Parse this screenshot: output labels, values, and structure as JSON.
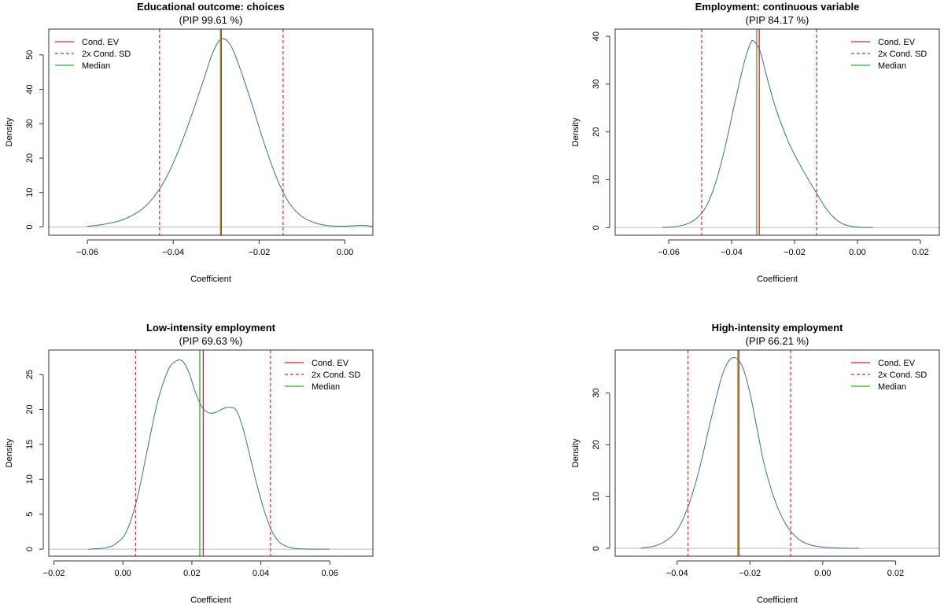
{
  "chart_data": [
    {
      "type": "line",
      "title": "Educational outcome: choices",
      "subtitle": "(PIP 99.61 %)",
      "xlabel": "Coefficient",
      "ylabel": "Density",
      "xlim": [
        -0.069,
        0.0065
      ],
      "ylim": [
        -2.4,
        57.5
      ],
      "xticks": [
        -0.06,
        -0.04,
        -0.02,
        0.0
      ],
      "xtick_labels": [
        "−0.06",
        "−0.04",
        "−0.02",
        "0.00"
      ],
      "yticks": [
        0,
        10,
        20,
        30,
        40,
        50
      ],
      "ytick_labels": [
        "0",
        "10",
        "20",
        "30",
        "40",
        "50"
      ],
      "legend": {
        "placement": "top-left",
        "entries": [
          "Cond. EV",
          "2x Cond. SD",
          "Median"
        ]
      },
      "cond_ev": -0.0288,
      "median": -0.029,
      "sd_lines": [
        -0.0432,
        -0.0144
      ],
      "series": [
        {
          "name": "density",
          "x": [
            -0.06,
            -0.056,
            -0.052,
            -0.048,
            -0.045,
            -0.042,
            -0.039,
            -0.036,
            -0.033,
            -0.031,
            -0.029,
            -0.027,
            -0.025,
            -0.022,
            -0.019,
            -0.016,
            -0.013,
            -0.01,
            -0.007,
            -0.004,
            0.0,
            0.004,
            0.0065
          ],
          "y": [
            0.2,
            0.8,
            2.0,
            4.5,
            8.0,
            13.5,
            21.5,
            31.5,
            42.5,
            50.0,
            54.5,
            53.5,
            48.0,
            37.0,
            25.0,
            14.5,
            7.0,
            3.0,
            1.2,
            0.4,
            0.2,
            0.5,
            0.1
          ]
        }
      ]
    },
    {
      "type": "line",
      "title": "Employment: continuous variable",
      "subtitle": "(PIP 84.17 %)",
      "xlabel": "Coefficient",
      "ylabel": "Density",
      "xlim": [
        -0.077,
        0.026
      ],
      "ylim": [
        -1.6,
        41.5
      ],
      "xticks": [
        -0.06,
        -0.04,
        -0.02,
        0.0,
        0.02
      ],
      "xtick_labels": [
        "−0.06",
        "−0.04",
        "−0.02",
        "0.00",
        "0.02"
      ],
      "yticks": [
        0,
        10,
        20,
        30,
        40
      ],
      "ytick_labels": [
        "0",
        "10",
        "20",
        "30",
        "40"
      ],
      "legend": {
        "placement": "top-right",
        "entries": [
          "Cond. EV",
          "2x Cond. SD",
          "Median"
        ]
      },
      "cond_ev": -0.0312,
      "median": -0.032,
      "sd_lines": [
        -0.0495,
        -0.013
      ],
      "series": [
        {
          "name": "density",
          "x": [
            -0.062,
            -0.058,
            -0.054,
            -0.051,
            -0.048,
            -0.045,
            -0.042,
            -0.039,
            -0.036,
            -0.034,
            -0.033,
            -0.031,
            -0.029,
            -0.026,
            -0.022,
            -0.019,
            -0.016,
            -0.013,
            -0.01,
            -0.007,
            -0.004,
            0.0,
            0.005
          ],
          "y": [
            0.05,
            0.2,
            0.8,
            2.0,
            4.5,
            9.5,
            17.0,
            26.0,
            34.5,
            38.5,
            39.0,
            37.0,
            32.0,
            25.0,
            18.0,
            14.0,
            10.5,
            7.2,
            4.0,
            1.8,
            0.6,
            0.1,
            0.02
          ]
        }
      ]
    },
    {
      "type": "line",
      "title": "Low-intensity employment",
      "subtitle": "(PIP 69.63 %)",
      "xlabel": "Coefficient",
      "ylabel": "Density",
      "xlim": [
        -0.0215,
        0.0725
      ],
      "ylim": [
        -1.0,
        28.5
      ],
      "xticks": [
        -0.02,
        0.0,
        0.02,
        0.04,
        0.06
      ],
      "xtick_labels": [
        "−0.02",
        "0.00",
        "0.02",
        "0.04",
        "0.06"
      ],
      "yticks": [
        0,
        5,
        10,
        15,
        20,
        25
      ],
      "ytick_labels": [
        "0",
        "5",
        "10",
        "15",
        "20",
        "25"
      ],
      "legend": {
        "placement": "top-right",
        "entries": [
          "Cond. EV",
          "2x Cond. SD",
          "Median"
        ]
      },
      "cond_ev": 0.0233,
      "median": 0.0223,
      "sd_lines": [
        0.0037,
        0.0428
      ],
      "series": [
        {
          "name": "density",
          "x": [
            -0.01,
            -0.005,
            -0.002,
            0.001,
            0.004,
            0.007,
            0.01,
            0.013,
            0.015,
            0.017,
            0.019,
            0.021,
            0.023,
            0.025,
            0.027,
            0.029,
            0.031,
            0.033,
            0.035,
            0.037,
            0.039,
            0.041,
            0.043,
            0.045,
            0.047,
            0.05,
            0.054,
            0.06
          ],
          "y": [
            0.0,
            0.2,
            0.8,
            2.5,
            7.0,
            14.0,
            21.0,
            25.5,
            26.8,
            27.0,
            25.5,
            22.5,
            20.3,
            19.5,
            19.6,
            20.1,
            20.3,
            19.8,
            17.0,
            13.0,
            9.0,
            5.5,
            2.8,
            1.2,
            0.5,
            0.1,
            0.02,
            0.0
          ]
        }
      ]
    },
    {
      "type": "line",
      "title": "High-intensity employment",
      "subtitle": "(PIP 66.21 %)",
      "xlabel": "Coefficient",
      "ylabel": "Density",
      "xlim": [
        -0.057,
        0.032
      ],
      "ylim": [
        -1.5,
        38.3
      ],
      "xticks": [
        -0.04,
        -0.02,
        0.0,
        0.02
      ],
      "xtick_labels": [
        "−0.04",
        "−0.02",
        "0.00",
        "0.02"
      ],
      "yticks": [
        0,
        10,
        20,
        30
      ],
      "ytick_labels": [
        "0",
        "10",
        "20",
        "30"
      ],
      "legend": {
        "placement": "top-right",
        "entries": [
          "Cond. EV",
          "2x Cond. SD",
          "Median"
        ]
      },
      "cond_ev": -0.023,
      "median": -0.0233,
      "sd_lines": [
        -0.037,
        -0.0088
      ],
      "series": [
        {
          "name": "density",
          "x": [
            -0.05,
            -0.046,
            -0.043,
            -0.04,
            -0.037,
            -0.034,
            -0.031,
            -0.028,
            -0.026,
            -0.024,
            -0.022,
            -0.02,
            -0.018,
            -0.016,
            -0.013,
            -0.01,
            -0.007,
            -0.004,
            0.0,
            0.005,
            0.01
          ],
          "y": [
            0.05,
            0.5,
            1.5,
            3.5,
            8.0,
            15.0,
            24.0,
            32.5,
            36.0,
            36.8,
            35.0,
            30.0,
            23.0,
            16.0,
            9.0,
            4.5,
            2.0,
            0.8,
            0.25,
            0.05,
            0.01
          ]
        }
      ]
    }
  ],
  "colors": {
    "density": "#3a6ea5",
    "cond_ev": "#e8232a",
    "median": "#2fae2f",
    "baseline": "#bdbdbd",
    "frame": "#333333"
  }
}
